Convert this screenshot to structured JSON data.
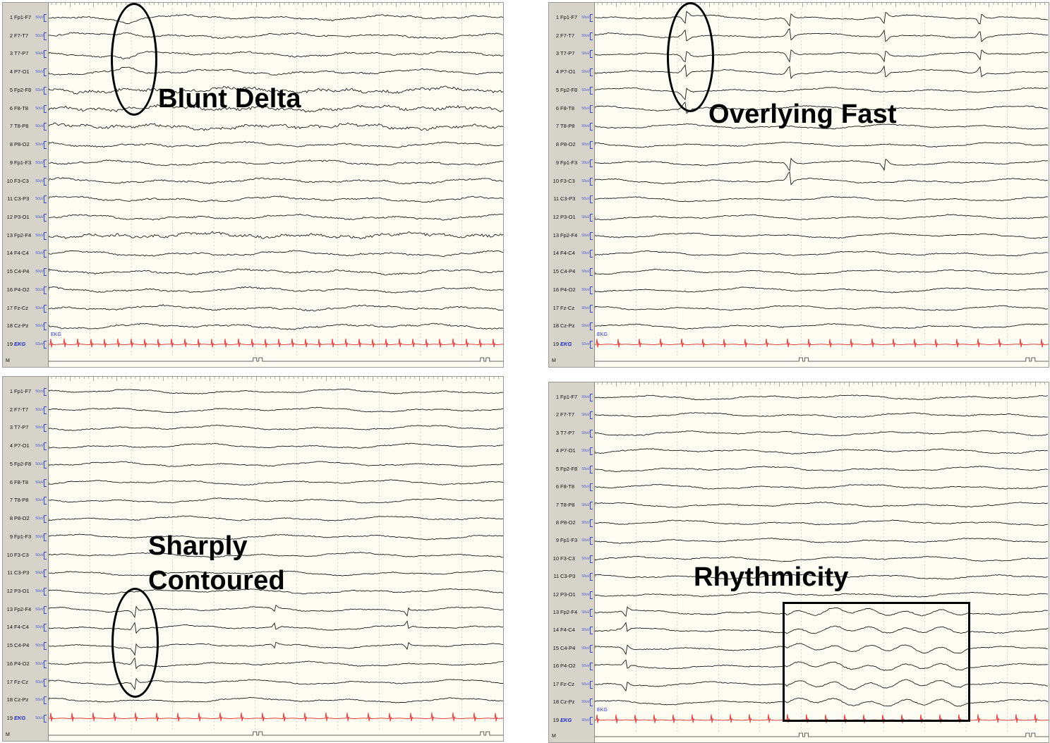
{
  "channels": [
    "Fp1-F7",
    "F7-T7",
    "T7-P7",
    "P7-O1",
    "Fp2-F8",
    "F8-T8",
    "T8-P8",
    "P8-O2",
    "Fp1-F3",
    "F3-C3",
    "C3-P3",
    "P3-O1",
    "Fp2-F4",
    "F4-C4",
    "C4-P4",
    "P4-O2",
    "Fz-Cz",
    "Cz-Pz"
  ],
  "ekg_label": "EKG",
  "marker_label": "M",
  "scale_label": "50uV",
  "panels": [
    {
      "id": "blunt-delta",
      "annotation": "Blunt Delta",
      "trace_color": "#1a1a1a",
      "ekg_color": "#e0282a"
    },
    {
      "id": "overlying-fast",
      "annotation": "Overlying Fast",
      "trace_color": "#1a1a1a",
      "ekg_color": "#e0282a"
    },
    {
      "id": "sharply-contoured",
      "annotation_lines": [
        "Sharply",
        "Contoured"
      ],
      "trace_color": "#1a1a1a",
      "ekg_color": "#e0282a"
    },
    {
      "id": "rhythmicity",
      "annotation": "Rhythmicity",
      "trace_color": "#1a1a1a",
      "ekg_color": "#e0282a"
    }
  ]
}
